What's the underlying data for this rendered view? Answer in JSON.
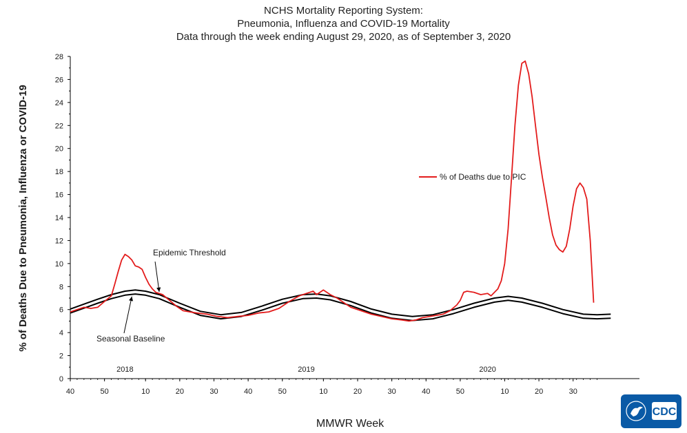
{
  "header": {
    "title_line1": "NCHS Mortality Reporting System:",
    "title_line2": "Pneumonia,  Influenza and COVID-19 Mortality",
    "title_line3": "Data through the week ending August 29, 2020, as of September  3, 2020"
  },
  "logo": {
    "text": "CDC"
  },
  "chart_data": {
    "type": "line",
    "xlabel": "MMWR Week",
    "ylabel": "% of Deaths Due to Pneumonia, Influenza or  COVID-19",
    "ylim": [
      0,
      28
    ],
    "yticks": [
      0,
      2,
      4,
      6,
      8,
      10,
      12,
      14,
      16,
      18,
      20,
      22,
      24,
      26,
      28
    ],
    "x_week_index_range": [
      0,
      152
    ],
    "xtick_labels": [
      {
        "idx": 0,
        "label": "40"
      },
      {
        "idx": 10,
        "label": "50"
      },
      {
        "idx": 22,
        "label": "10"
      },
      {
        "idx": 32,
        "label": "20"
      },
      {
        "idx": 42,
        "label": "30"
      },
      {
        "idx": 52,
        "label": "40"
      },
      {
        "idx": 62,
        "label": "50"
      },
      {
        "idx": 74,
        "label": "10"
      },
      {
        "idx": 84,
        "label": "20"
      },
      {
        "idx": 94,
        "label": "30"
      },
      {
        "idx": 104,
        "label": "40"
      },
      {
        "idx": 114,
        "label": "50"
      },
      {
        "idx": 127,
        "label": "10"
      },
      {
        "idx": 137,
        "label": "20"
      },
      {
        "idx": 147,
        "label": "30"
      }
    ],
    "year_labels": [
      {
        "idx": 16,
        "label": "2018"
      },
      {
        "idx": 69,
        "label": "2019"
      },
      {
        "idx": 122,
        "label": "2020"
      }
    ],
    "series": [
      {
        "name": "% of Deaths due to PIC",
        "color": "#e31b1b",
        "in_legend": true,
        "points": [
          [
            0,
            5.8
          ],
          [
            2,
            6.0
          ],
          [
            4,
            6.2
          ],
          [
            6,
            6.1
          ],
          [
            8,
            6.2
          ],
          [
            10,
            6.7
          ],
          [
            12,
            7.2
          ],
          [
            13,
            8.2
          ],
          [
            14,
            9.3
          ],
          [
            15,
            10.3
          ],
          [
            16,
            10.8
          ],
          [
            17,
            10.6
          ],
          [
            18,
            10.3
          ],
          [
            19,
            9.8
          ],
          [
            20,
            9.7
          ],
          [
            21,
            9.5
          ],
          [
            22,
            8.8
          ],
          [
            23,
            8.2
          ],
          [
            24,
            7.8
          ],
          [
            25,
            7.5
          ],
          [
            27,
            7.3
          ],
          [
            29,
            6.8
          ],
          [
            31,
            6.3
          ],
          [
            33,
            5.9
          ],
          [
            35,
            5.8
          ],
          [
            37,
            5.7
          ],
          [
            40,
            5.6
          ],
          [
            43,
            5.4
          ],
          [
            46,
            5.3
          ],
          [
            49,
            5.4
          ],
          [
            52,
            5.5
          ],
          [
            55,
            5.7
          ],
          [
            58,
            5.8
          ],
          [
            61,
            6.1
          ],
          [
            64,
            6.7
          ],
          [
            67,
            7.2
          ],
          [
            69,
            7.4
          ],
          [
            71,
            7.6
          ],
          [
            72,
            7.3
          ],
          [
            74,
            7.7
          ],
          [
            76,
            7.3
          ],
          [
            78,
            7.0
          ],
          [
            80,
            6.6
          ],
          [
            82,
            6.2
          ],
          [
            85,
            5.9
          ],
          [
            88,
            5.6
          ],
          [
            91,
            5.4
          ],
          [
            94,
            5.2
          ],
          [
            97,
            5.1
          ],
          [
            99,
            5.0
          ],
          [
            101,
            5.1
          ],
          [
            103,
            5.3
          ],
          [
            105,
            5.4
          ],
          [
            107,
            5.5
          ],
          [
            109,
            5.6
          ],
          [
            111,
            5.9
          ],
          [
            113,
            6.4
          ],
          [
            114,
            6.8
          ],
          [
            115,
            7.5
          ],
          [
            116,
            7.6
          ],
          [
            118,
            7.5
          ],
          [
            120,
            7.3
          ],
          [
            122,
            7.4
          ],
          [
            123,
            7.2
          ],
          [
            124,
            7.5
          ],
          [
            125,
            7.8
          ],
          [
            126,
            8.5
          ],
          [
            127,
            10.0
          ],
          [
            128,
            13.0
          ],
          [
            129,
            17.5
          ],
          [
            130,
            22.0
          ],
          [
            131,
            25.5
          ],
          [
            132,
            27.4
          ],
          [
            133,
            27.6
          ],
          [
            134,
            26.5
          ],
          [
            135,
            24.5
          ],
          [
            136,
            22.0
          ],
          [
            137,
            19.5
          ],
          [
            138,
            17.5
          ],
          [
            139,
            15.8
          ],
          [
            140,
            14.0
          ],
          [
            141,
            12.5
          ],
          [
            142,
            11.6
          ],
          [
            143,
            11.2
          ],
          [
            144,
            11.0
          ],
          [
            145,
            11.5
          ],
          [
            146,
            13.0
          ],
          [
            147,
            15.0
          ],
          [
            148,
            16.5
          ],
          [
            149,
            17.0
          ],
          [
            150,
            16.6
          ],
          [
            151,
            15.6
          ],
          [
            152,
            12.0
          ],
          [
            153,
            6.6
          ]
        ]
      },
      {
        "name": "Epidemic Threshold",
        "color": "#000000",
        "in_legend": false,
        "points": [
          [
            0,
            6.05
          ],
          [
            8,
            6.9
          ],
          [
            12,
            7.3
          ],
          [
            16,
            7.6
          ],
          [
            19,
            7.7
          ],
          [
            22,
            7.6
          ],
          [
            26,
            7.3
          ],
          [
            32,
            6.55
          ],
          [
            38,
            5.85
          ],
          [
            44,
            5.55
          ],
          [
            50,
            5.75
          ],
          [
            56,
            6.3
          ],
          [
            62,
            6.9
          ],
          [
            68,
            7.3
          ],
          [
            72,
            7.35
          ],
          [
            76,
            7.2
          ],
          [
            82,
            6.7
          ],
          [
            88,
            6.05
          ],
          [
            94,
            5.6
          ],
          [
            100,
            5.4
          ],
          [
            106,
            5.55
          ],
          [
            112,
            6.0
          ],
          [
            118,
            6.55
          ],
          [
            124,
            7.0
          ],
          [
            128,
            7.15
          ],
          [
            132,
            7.0
          ],
          [
            138,
            6.55
          ],
          [
            144,
            6.0
          ],
          [
            150,
            5.6
          ],
          [
            154,
            5.55
          ],
          [
            158,
            5.6
          ]
        ]
      },
      {
        "name": "Seasonal Baseline",
        "color": "#000000",
        "in_legend": false,
        "points": [
          [
            0,
            5.7
          ],
          [
            8,
            6.55
          ],
          [
            12,
            6.95
          ],
          [
            16,
            7.25
          ],
          [
            19,
            7.35
          ],
          [
            22,
            7.25
          ],
          [
            26,
            6.95
          ],
          [
            32,
            6.2
          ],
          [
            38,
            5.5
          ],
          [
            44,
            5.2
          ],
          [
            50,
            5.4
          ],
          [
            56,
            5.95
          ],
          [
            62,
            6.55
          ],
          [
            68,
            6.95
          ],
          [
            72,
            7.0
          ],
          [
            76,
            6.85
          ],
          [
            82,
            6.35
          ],
          [
            88,
            5.7
          ],
          [
            94,
            5.25
          ],
          [
            100,
            5.05
          ],
          [
            106,
            5.2
          ],
          [
            112,
            5.65
          ],
          [
            118,
            6.2
          ],
          [
            124,
            6.65
          ],
          [
            128,
            6.8
          ],
          [
            132,
            6.65
          ],
          [
            138,
            6.2
          ],
          [
            144,
            5.65
          ],
          [
            150,
            5.25
          ],
          [
            154,
            5.2
          ],
          [
            158,
            5.25
          ]
        ]
      }
    ],
    "annotations": [
      {
        "text": "Epidemic Threshold",
        "target_series": "Epidemic Threshold",
        "target_x": 26
      },
      {
        "text": "Seasonal Baseline",
        "target_series": "Seasonal Baseline",
        "target_x": 18
      }
    ],
    "legend": {
      "placement": "right",
      "label": "% of Deaths due to PIC"
    }
  }
}
